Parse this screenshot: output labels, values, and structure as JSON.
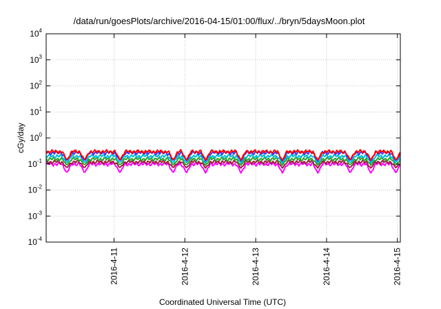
{
  "chart_data": {
    "type": "line",
    "title": "/data/run/goesPlots/archive/2016-04-15/01:00/flux/../bryn/5daysMoon.plot",
    "xlabel": "Coordinated Universal Time (UTC)",
    "ylabel": "cGy/day",
    "y_scale": "log",
    "ylim": [
      0.0001,
      10000
    ],
    "y_ticks": [
      {
        "base": "10",
        "exp": "-4",
        "value": 0.0001
      },
      {
        "base": "10",
        "exp": "-3",
        "value": 0.001
      },
      {
        "base": "10",
        "exp": "-2",
        "value": 0.01
      },
      {
        "base": "10",
        "exp": "-1",
        "value": 0.1
      },
      {
        "base": "10",
        "exp": "0",
        "value": 1
      },
      {
        "base": "10",
        "exp": "1",
        "value": 10
      },
      {
        "base": "10",
        "exp": "2",
        "value": 100
      },
      {
        "base": "10",
        "exp": "3",
        "value": 1000
      },
      {
        "base": "10",
        "exp": "4",
        "value": 10000
      }
    ],
    "xlim": [
      "2016-04-10T01:00",
      "2016-04-15T01:00"
    ],
    "x_ticks": [
      {
        "label": "2016-4-11",
        "value": "2016-04-11T00:00"
      },
      {
        "label": "2016-4-12",
        "value": "2016-04-12T00:00"
      },
      {
        "label": "2016-4-13",
        "value": "2016-04-13T00:00"
      },
      {
        "label": "2016-4-14",
        "value": "2016-04-14T00:00"
      },
      {
        "label": "2016-4-15",
        "value": "2016-04-15T00:00"
      }
    ],
    "grid": true,
    "series": [
      {
        "color": "#ff00ff",
        "base_value": 0.1,
        "dip_value": 0.045
      },
      {
        "color": "#9e1f3c",
        "base_value": 0.12,
        "dip_value": 0.07
      },
      {
        "color": "#2ca02c",
        "base_value": 0.155,
        "dip_value": 0.09
      },
      {
        "color": "#00bcd4",
        "base_value": 0.2,
        "dip_value": 0.11
      },
      {
        "color": "#3a3aff",
        "base_value": 0.27,
        "dip_value": 0.13
      },
      {
        "color": "#ff0000",
        "base_value": 0.3,
        "dip_value": 0.14
      }
    ],
    "dips": [
      "2016-04-10T08:00",
      "2016-04-10T14:00",
      "2016-04-11T02:00",
      "2016-04-11T20:00",
      "2016-04-12T00:30",
      "2016-04-12T07:00",
      "2016-04-12T19:00",
      "2016-04-13T09:00",
      "2016-04-13T21:00",
      "2016-04-14T08:00",
      "2016-04-14T15:00",
      "2016-04-14T23:30"
    ]
  }
}
